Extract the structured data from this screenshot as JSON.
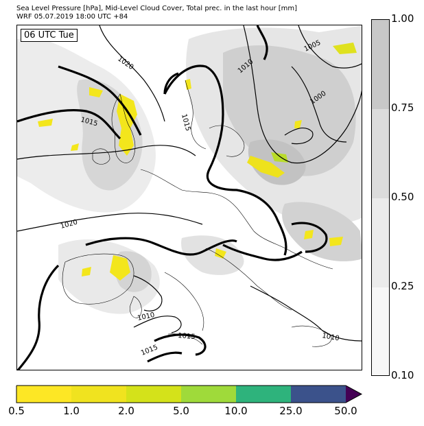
{
  "header": {
    "title_line1": "Sea Level Pressure [hPa], Mid-Level Cloud Cover, Total prec. in the last hour [mm]",
    "title_line2": "WRF 05.07.2019 18:00 UTC +84"
  },
  "map": {
    "time_label": "06 UTC Tue",
    "isobar_labels": [
      "1020",
      "1015",
      "1010",
      "1005",
      "1000",
      "1015",
      "1020",
      "1010",
      "1015",
      "1015",
      "1010"
    ]
  },
  "cloud_colorbar": {
    "ticks": [
      "1.00",
      "0.75",
      "0.50",
      "0.25",
      "0.10"
    ],
    "colors": [
      "#c8c8c8",
      "#dcdcdc",
      "#ebebeb",
      "#f7f7f7"
    ]
  },
  "precip_colorbar": {
    "ticks": [
      "0.5",
      "1.0",
      "2.0",
      "5.0",
      "10.0",
      "25.0",
      "50.0"
    ],
    "colors": [
      "#fde725",
      "#f0e31f",
      "#d4e21a",
      "#9fda3a",
      "#2eb37c",
      "#3b528b",
      "#440154"
    ]
  }
}
